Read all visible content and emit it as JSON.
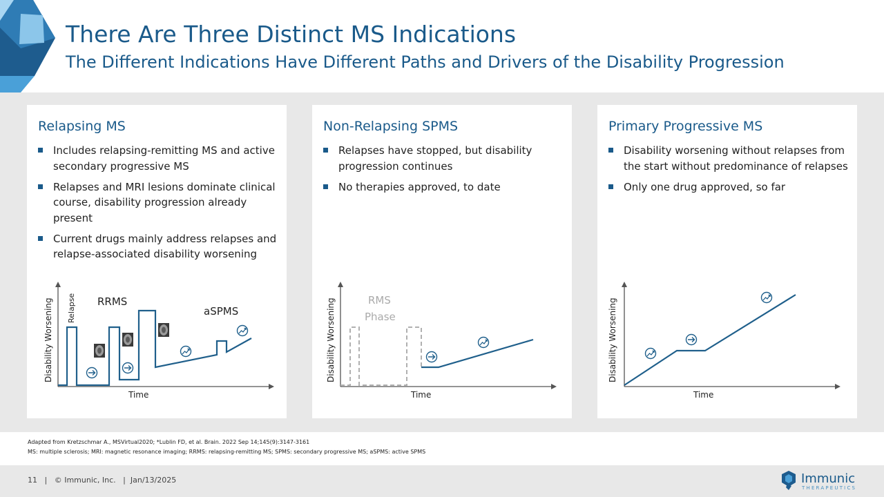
{
  "slide": {
    "title": "There Are Three Distinct MS Indications",
    "subtitle": "The Different Indications Have Different Paths and Drivers of the Disability Progression"
  },
  "panels": [
    {
      "heading": "Relapsing MS",
      "bullets": [
        "Includes relapsing-remitting MS and active secondary progressive MS",
        "Relapses and MRI lesions dominate clinical course, disability progression already present",
        "Current drugs mainly address relapses and relapse-associated disability worsening"
      ],
      "chart": {
        "ylabel": "Disability Worsening",
        "xlabel": "Time",
        "relapse_label": "Relapse",
        "label_1": "RRMS",
        "label_2": "aSPMS"
      }
    },
    {
      "heading": "Non-Relapsing SPMS",
      "bullets": [
        "Relapses have stopped, but disability progression continues",
        "No therapies approved, to date"
      ],
      "chart": {
        "ylabel": "Disability Worsening",
        "xlabel": "Time",
        "phase_label_1": "RMS",
        "phase_label_2": "Phase"
      }
    },
    {
      "heading": "Primary Progressive MS",
      "bullets": [
        "Disability worsening without relapses from the start without predominance of relapses",
        "Only one drug approved, so far"
      ],
      "chart": {
        "ylabel": "Disability Worsening",
        "xlabel": "Time"
      }
    }
  ],
  "footnotes": {
    "line1": "Adapted from Kretzschmar A., MSVirtual2020; *Lublin FD, et al. Brain. 2022 Sep 14;145(9):3147-3161",
    "line2": "MS: multiple sclerosis; MRI: magnetic resonance imaging; RRMS: relapsing-remitting MS; SPMS: secondary progressive MS; aSPMS: active SPMS"
  },
  "footer": {
    "page_number": "11",
    "copyright": "© Immunic, Inc.",
    "date": "Jan/13/2025",
    "logo_name": "Immunic",
    "logo_sub": "THERAPEUTICS"
  },
  "colors": {
    "brand_blue": "#1a5a8a",
    "chart_line": "#1f5f8b",
    "dashed_gray": "#b0b0b0",
    "panel_bg": "#e8e8e8"
  },
  "icons": [
    "arrow-right-circle-icon",
    "trend-up-circle-icon",
    "mri-scan-icon"
  ]
}
